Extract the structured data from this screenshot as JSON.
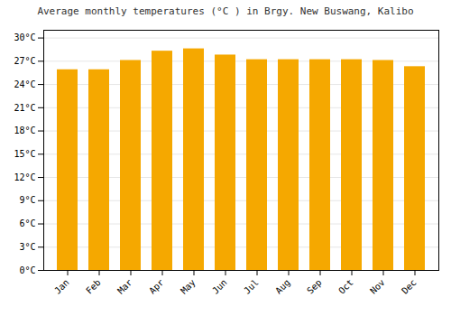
{
  "chart_data": {
    "type": "bar",
    "title": "Average monthly temperatures (°C ) in Brgy. New Buswang, Kalibo",
    "categories": [
      "Jan",
      "Feb",
      "Mar",
      "Apr",
      "May",
      "Jun",
      "Jul",
      "Aug",
      "Sep",
      "Oct",
      "Nov",
      "Dec"
    ],
    "values": [
      25.9,
      25.9,
      27.1,
      28.3,
      28.6,
      27.8,
      27.2,
      27.2,
      27.2,
      27.2,
      27.1,
      26.3
    ],
    "color": "#F5A800",
    "ylim": [
      0,
      31
    ],
    "yticks": [
      {
        "value": 0,
        "label": "0°C"
      },
      {
        "value": 3,
        "label": "3°C"
      },
      {
        "value": 6,
        "label": "6°C"
      },
      {
        "value": 9,
        "label": "9°C"
      },
      {
        "value": 12,
        "label": "12°C"
      },
      {
        "value": 15,
        "label": "15°C"
      },
      {
        "value": 18,
        "label": "18°C"
      },
      {
        "value": 21,
        "label": "21°C"
      },
      {
        "value": 24,
        "label": "24°C"
      },
      {
        "value": 27,
        "label": "27°C"
      },
      {
        "value": 30,
        "label": "30°C"
      }
    ],
    "grid": true
  }
}
